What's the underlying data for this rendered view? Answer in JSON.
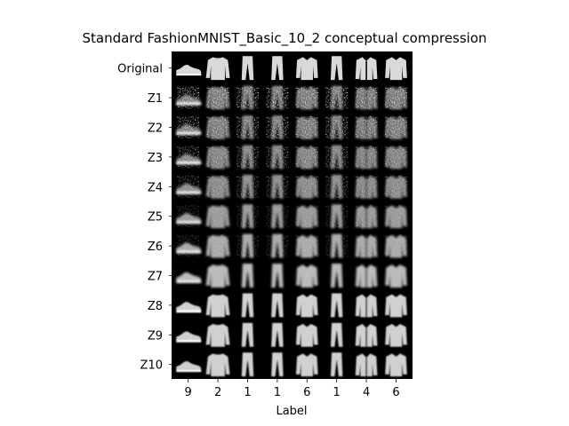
{
  "title": "Standard FashionMNIST_Basic_10_2 conceptual compression",
  "xlabel": "Label",
  "row_labels": [
    "Original",
    "Z1",
    "Z2",
    "Z3",
    "Z4",
    "Z5",
    "Z6",
    "Z7",
    "Z8",
    "Z9",
    "Z10"
  ],
  "column_labels": [
    "9",
    "2",
    "1",
    "1",
    "6",
    "1",
    "4",
    "6"
  ],
  "column_items": [
    "sneaker-icon",
    "pullover-icon",
    "trouser-icon",
    "trouser-icon",
    "shirt-icon",
    "trouser-icon",
    "coat-icon",
    "shirt-icon"
  ],
  "colors": {
    "background": "#000000",
    "figure": "#ffffff"
  }
}
